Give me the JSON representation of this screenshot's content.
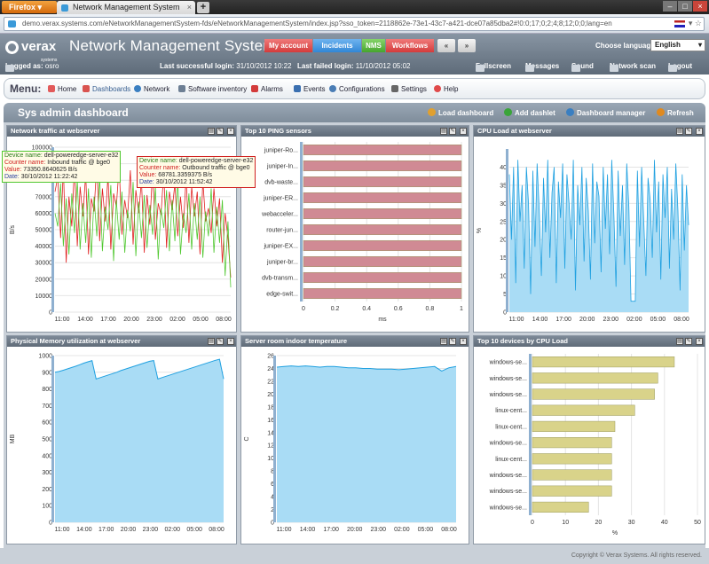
{
  "browser": {
    "app_button": "Firefox",
    "tab_title": "Network Management System",
    "url": "demo.verax.systems.com/eNetworkManagementSystem-fds/eNetworkManagementSystem/index.jsp?sso_token=2118862e-73e1-43c7-a421-dce07a85dba2#!0:0;17;0;2;4;8;12;0;0;lang=en"
  },
  "header": {
    "logo_text": "verax",
    "logo_sub": "systems",
    "app_title": "Network Management System",
    "nav": [
      "My account",
      "Incidents",
      "NMS",
      "Workflows"
    ],
    "choose_language_label": "Choose language:",
    "language_value": "English",
    "logged_as_label": "Logged as:",
    "logged_as_user": "osro",
    "last_success_label": "Last successful login:",
    "last_success_value": "31/10/2012 10:22",
    "last_failed_label": "Last failed login:",
    "last_failed_value": "11/10/2012 05:02",
    "tools": [
      "Fullscreen",
      "Messages",
      "Sound",
      "Network scan",
      "Logout"
    ]
  },
  "menu": {
    "label": "Menu:",
    "items": [
      "Home",
      "Dashboards",
      "Network",
      "Software inventory",
      "Alarms",
      "Events",
      "Configurations",
      "Settings",
      "Help"
    ]
  },
  "dashboard": {
    "title": "Sys admin dashboard",
    "actions": [
      "Load dashboard",
      "Add dashlet",
      "Dashboard manager",
      "Refresh"
    ]
  },
  "panels": {
    "traffic_title": "Network traffic at webserver",
    "ping_title": "Top 10 PING sensors",
    "cpu_title": "CPU Load at webserver",
    "memory_title": "Physical Memory utilization at webserver",
    "temp_title": "Server room indoor temperature",
    "topcpu_title": "Top 10 devices by CPU Load"
  },
  "tooltips": {
    "inbound": {
      "device_label": "Device name:",
      "device_value": "dell-poweredge-server-e32",
      "counter_label": "Counter name:",
      "counter_value": "Inbound traffic @ bge0",
      "value_label": "Value:",
      "value_value": "73350.8640625 B/s",
      "date_label": "Date:",
      "date_value": "30/10/2012 11:22:42"
    },
    "outbound": {
      "device_label": "Device name:",
      "device_value": "dell-poweredge-server-e32",
      "counter_label": "Counter name:",
      "counter_value": "Outbound traffic @ bge0",
      "value_label": "Value:",
      "value_value": "68781.3359375 B/s",
      "date_label": "Date:",
      "date_value": "30/10/2012 11:52:42"
    }
  },
  "colors": {
    "accent_red": "#d33b3b",
    "accent_blue": "#3186d6",
    "accent_green": "#46a52e",
    "area_blue": "#a9dcf5",
    "line_blue": "#1fa0e0",
    "bar_red": "#d08a94",
    "bar_yellow": "#d9d38a"
  },
  "footer": "Copyright © Verax Systems. All rights reserved.",
  "chart_data": [
    {
      "id": "traffic",
      "type": "line",
      "ylabel": "B/s",
      "ylim": [
        0,
        100000
      ],
      "yticks": [
        0,
        10000,
        20000,
        30000,
        40000,
        50000,
        60000,
        70000,
        80000,
        90000,
        100000
      ],
      "xticks": [
        "11:00",
        "14:00",
        "17:00",
        "20:00",
        "23:00",
        "02:00",
        "05:00",
        "08:00"
      ],
      "series": [
        {
          "name": "Inbound traffic @ bge0",
          "color": "#e02020",
          "values": [
            73000,
            82000,
            45000,
            88000,
            30000,
            70000,
            52000,
            90000,
            40000,
            76000,
            58000,
            84000,
            35000,
            69000,
            61000,
            91000,
            43000,
            75000,
            55000,
            83000,
            38000,
            72000,
            64000,
            89000,
            47000,
            68000,
            57000,
            86000,
            41000,
            74000,
            60000,
            80000,
            36000,
            71000,
            53000,
            87000,
            44000,
            66000,
            59000,
            85000,
            39000,
            73000,
            62000,
            78000,
            46000,
            70000,
            51000,
            82000,
            42000,
            76000,
            58000,
            73000,
            35000,
            80000,
            55000,
            63000,
            48000,
            75000,
            52000,
            69000,
            30000,
            60000,
            45000,
            21000
          ]
        },
        {
          "name": "Outbound traffic @ bge0",
          "color": "#50c830",
          "values": [
            60000,
            52000,
            78000,
            40000,
            69000,
            35000,
            72000,
            48000,
            80000,
            38000,
            66000,
            42000,
            75000,
            33000,
            70000,
            46000,
            82000,
            37000,
            64000,
            50000,
            77000,
            31000,
            68000,
            44000,
            73000,
            36000,
            62000,
            49000,
            79000,
            34000,
            67000,
            45000,
            71000,
            39000,
            65000,
            47000,
            76000,
            32000,
            63000,
            51000,
            74000,
            37000,
            68000,
            43000,
            81000,
            35000,
            60000,
            48000,
            72000,
            38000,
            66000,
            44000,
            70000,
            33000,
            61000,
            46000,
            75000,
            36000,
            64000,
            42000,
            68000,
            22000,
            55000,
            15000
          ]
        }
      ]
    },
    {
      "id": "ping",
      "type": "bar",
      "orientation": "horizontal",
      "xlabel": "ms",
      "xlim": [
        0,
        1
      ],
      "xticks": [
        0,
        0.2,
        0.4,
        0.6,
        0.8,
        1
      ],
      "categories": [
        "juniper-Ro...",
        "juniper-In...",
        "dvb-waste...",
        "juniper-ER...",
        "webacceler...",
        "router-jun...",
        "juniper-EX...",
        "juniper-br...",
        "dvb-transm...",
        "edge-swit..."
      ],
      "values": [
        1,
        1,
        1,
        1,
        1,
        1,
        1,
        1,
        1,
        1
      ]
    },
    {
      "id": "cpu",
      "type": "area",
      "ylabel": "%",
      "ylim": [
        0,
        45
      ],
      "yticks": [
        0,
        5,
        10,
        15,
        20,
        25,
        30,
        35,
        40
      ],
      "xticks": [
        "11:00",
        "14:00",
        "17:00",
        "20:00",
        "23:00",
        "02:00",
        "05:00",
        "08:00"
      ],
      "values": [
        38,
        20,
        40,
        8,
        42,
        25,
        35,
        12,
        40,
        30,
        5,
        39,
        18,
        41,
        28,
        10,
        37,
        22,
        42,
        15,
        33,
        40,
        8,
        36,
        26,
        41,
        12,
        38,
        30,
        20,
        42,
        6,
        35,
        24,
        40,
        14,
        37,
        28,
        9,
        41,
        19,
        36,
        32,
        11,
        40,
        23,
        38,
        16,
        42,
        27,
        7,
        39,
        21,
        35,
        13,
        41,
        29,
        3,
        3,
        3,
        39,
        18,
        40,
        25,
        10,
        37,
        31,
        15,
        42,
        22,
        36,
        9,
        38,
        26,
        40,
        12,
        34,
        20,
        41,
        28,
        6,
        38,
        17,
        35,
        24
      ]
    },
    {
      "id": "memory",
      "type": "area",
      "ylabel": "MB",
      "ylim": [
        0,
        1000
      ],
      "yticks": [
        0,
        100,
        200,
        300,
        400,
        500,
        600,
        700,
        800,
        900,
        1000
      ],
      "xticks": [
        "11:00",
        "14:00",
        "17:00",
        "20:00",
        "23:00",
        "02:00",
        "05:00",
        "08:00"
      ],
      "values": [
        900,
        905,
        912,
        920,
        928,
        936,
        945,
        955,
        963,
        970,
        860,
        868,
        876,
        884,
        892,
        900,
        910,
        918,
        926,
        934,
        942,
        950,
        958,
        966,
        970,
        860,
        868,
        876,
        884,
        892,
        900,
        908,
        916,
        924,
        932,
        940,
        948,
        956,
        964,
        972,
        978,
        860
      ]
    },
    {
      "id": "temperature",
      "type": "area",
      "ylabel": "C",
      "ylim": [
        0,
        26
      ],
      "yticks": [
        0,
        2,
        4,
        6,
        8,
        10,
        12,
        14,
        16,
        18,
        20,
        22,
        24,
        26
      ],
      "xticks": [
        "11:00",
        "14:00",
        "17:00",
        "20:00",
        "23:00",
        "02:00",
        "05:00",
        "08:00"
      ],
      "values": [
        24.2,
        24.3,
        24.4,
        24.3,
        24.4,
        24.3,
        24.2,
        24.3,
        24.3,
        24.2,
        24.1,
        24.1,
        24.0,
        24.0,
        23.9,
        23.9,
        23.9,
        23.8,
        23.9,
        24.0,
        24.1,
        24.2,
        24.3,
        23.6,
        24.1,
        24.3
      ]
    },
    {
      "id": "topcpu",
      "type": "bar",
      "orientation": "horizontal",
      "xlabel": "%",
      "xlim": [
        0,
        50
      ],
      "xticks": [
        0,
        10,
        20,
        30,
        40,
        50
      ],
      "categories": [
        "windows-se...",
        "windows-se...",
        "windows-se...",
        "linux-cent...",
        "linux-cent...",
        "windows-se...",
        "linux-cent...",
        "windows-se...",
        "windows-se...",
        "windows-se..."
      ],
      "values": [
        43,
        38,
        37,
        31,
        25,
        24,
        24,
        24,
        24,
        17
      ]
    }
  ]
}
